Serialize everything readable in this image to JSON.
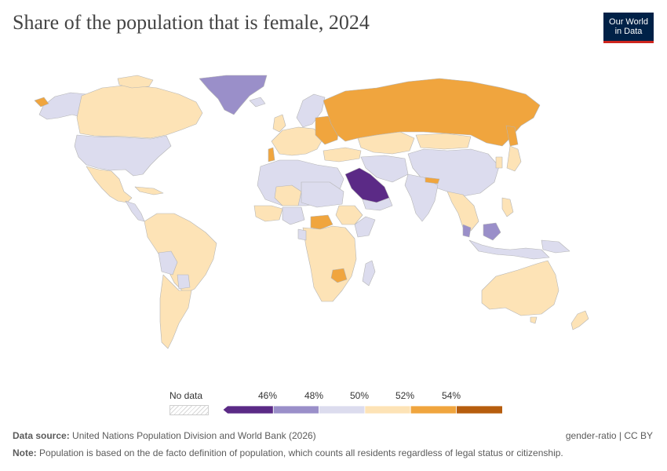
{
  "header": {
    "title": "Share of the population that is female, 2024",
    "logo_line1": "Our World",
    "logo_line2": "in Data"
  },
  "legend": {
    "no_data_label": "No data",
    "tick_labels": [
      "46%",
      "48%",
      "50%",
      "52%",
      "54%"
    ],
    "bins": [
      {
        "color": "#5b2a86"
      },
      {
        "color": "#9a8fc9"
      },
      {
        "color": "#dcdcee"
      },
      {
        "color": "#fde3b6"
      },
      {
        "color": "#f0a53e"
      },
      {
        "color": "#b65d0e"
      }
    ]
  },
  "map": {
    "colors": {
      "ocean": "#ffffff",
      "border": "#b5b5b5",
      "lavender": "#dcdcee",
      "peach": "#fde3b6",
      "orange": "#f0a53e",
      "purple_mid": "#9a8fc9",
      "purple_dark": "#5b2a86"
    }
  },
  "footer": {
    "source_label": "Data source:",
    "source_text": "United Nations Population Division and World Bank (2026)",
    "license": "gender-ratio | CC BY",
    "note_label": "Note:",
    "note_text": "Population is based on the de facto definition of population, which counts all residents regardless of legal status or citizenship."
  }
}
